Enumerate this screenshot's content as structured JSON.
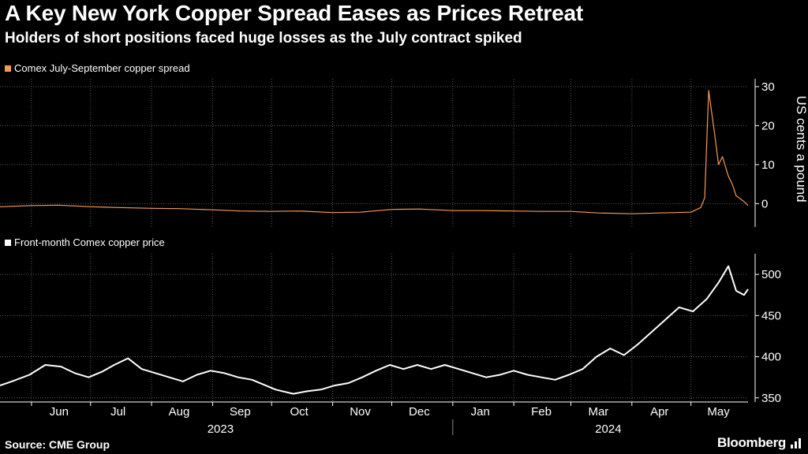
{
  "header": {
    "title": "A Key New York Copper Spread Eases as Prices Retreat",
    "subtitle": "Holders of short positions faced huge losses as the July contract spiked"
  },
  "footer": {
    "source": "Source: CME Group",
    "brand": "Bloomberg"
  },
  "colors": {
    "background": "#000000",
    "spread_line": "#f59a55",
    "price_line": "#ffffff",
    "grid": "#5a5a5a"
  },
  "chart_data": [
    {
      "type": "line",
      "legend": "Comex July-September copper spread",
      "ylabel": "US cents a pound",
      "ylim": [
        -6,
        32
      ],
      "yticks": [
        0,
        10,
        20,
        30
      ],
      "y_axis_side": "right",
      "grid": true,
      "color": "#f59a55",
      "x_range": [
        "2023-05-16",
        "2024-05-30"
      ],
      "series": [
        {
          "x": [
            "2023-05-16",
            "2023-06-01",
            "2023-06-15",
            "2023-07-01",
            "2023-07-15",
            "2023-08-01",
            "2023-08-15",
            "2023-09-01",
            "2023-09-15",
            "2023-10-01",
            "2023-10-15",
            "2023-11-01",
            "2023-11-15",
            "2023-12-01",
            "2023-12-15",
            "2024-01-01",
            "2024-01-15",
            "2024-02-01",
            "2024-02-15",
            "2024-03-01",
            "2024-03-15",
            "2024-04-01",
            "2024-04-15",
            "2024-05-01",
            "2024-05-06",
            "2024-05-08",
            "2024-05-10",
            "2024-05-13",
            "2024-05-15",
            "2024-05-17",
            "2024-05-20",
            "2024-05-22",
            "2024-05-24",
            "2024-05-28",
            "2024-05-30"
          ],
          "values": [
            -0.8,
            -0.5,
            -0.4,
            -0.8,
            -1.0,
            -1.2,
            -1.3,
            -1.6,
            -1.9,
            -2.0,
            -1.9,
            -2.3,
            -2.2,
            -1.5,
            -1.4,
            -1.8,
            -1.8,
            -1.9,
            -2.0,
            -2.0,
            -2.4,
            -2.6,
            -2.4,
            -2.2,
            -1.0,
            1.5,
            29.0,
            18.0,
            10.0,
            12.0,
            7.0,
            5.0,
            2.0,
            0.5,
            -0.5
          ]
        }
      ]
    },
    {
      "type": "line",
      "legend": "Front-month Comex copper price",
      "ylabel": "",
      "ylim": [
        345,
        525
      ],
      "yticks": [
        350,
        400,
        450,
        500
      ],
      "y_axis_side": "right",
      "grid": true,
      "color": "#ffffff",
      "x_range": [
        "2023-05-16",
        "2024-05-30"
      ],
      "series": [
        {
          "x": [
            "2023-05-16",
            "2023-05-22",
            "2023-05-31",
            "2023-06-08",
            "2023-06-16",
            "2023-06-23",
            "2023-06-30",
            "2023-07-07",
            "2023-07-13",
            "2023-07-20",
            "2023-07-27",
            "2023-08-03",
            "2023-08-10",
            "2023-08-17",
            "2023-08-24",
            "2023-08-31",
            "2023-09-07",
            "2023-09-14",
            "2023-09-21",
            "2023-09-28",
            "2023-10-03",
            "2023-10-12",
            "2023-10-19",
            "2023-10-26",
            "2023-11-02",
            "2023-11-09",
            "2023-11-16",
            "2023-11-23",
            "2023-11-30",
            "2023-12-07",
            "2023-12-14",
            "2023-12-21",
            "2023-12-28",
            "2024-01-04",
            "2024-01-11",
            "2024-01-18",
            "2024-01-25",
            "2024-02-01",
            "2024-02-08",
            "2024-02-15",
            "2024-02-22",
            "2024-02-29",
            "2024-03-07",
            "2024-03-14",
            "2024-03-21",
            "2024-03-28",
            "2024-04-04",
            "2024-04-11",
            "2024-04-18",
            "2024-04-25",
            "2024-05-02",
            "2024-05-09",
            "2024-05-15",
            "2024-05-20",
            "2024-05-24",
            "2024-05-28",
            "2024-05-30"
          ],
          "values": [
            365,
            370,
            378,
            390,
            388,
            380,
            375,
            382,
            390,
            398,
            385,
            380,
            375,
            370,
            378,
            383,
            380,
            375,
            372,
            365,
            360,
            355,
            358,
            360,
            365,
            368,
            375,
            383,
            390,
            385,
            390,
            385,
            390,
            385,
            380,
            375,
            378,
            383,
            378,
            375,
            372,
            378,
            385,
            400,
            410,
            402,
            415,
            430,
            445,
            460,
            455,
            470,
            490,
            510,
            480,
            475,
            482
          ]
        }
      ]
    }
  ],
  "x_axis": {
    "months": [
      "Jun",
      "Jul",
      "Aug",
      "Sep",
      "Oct",
      "Nov",
      "Dec",
      "Jan",
      "Feb",
      "Mar",
      "Apr",
      "May"
    ],
    "month_dates": [
      "2023-06-15",
      "2023-07-15",
      "2023-08-15",
      "2023-09-15",
      "2023-10-15",
      "2023-11-15",
      "2023-12-15",
      "2024-01-15",
      "2024-02-15",
      "2024-03-15",
      "2024-04-15",
      "2024-05-15"
    ],
    "years": [
      "2023",
      "2024"
    ],
    "year_dates": [
      "2023-09-05",
      "2024-03-20"
    ],
    "year_divider_date": "2024-01-01"
  }
}
